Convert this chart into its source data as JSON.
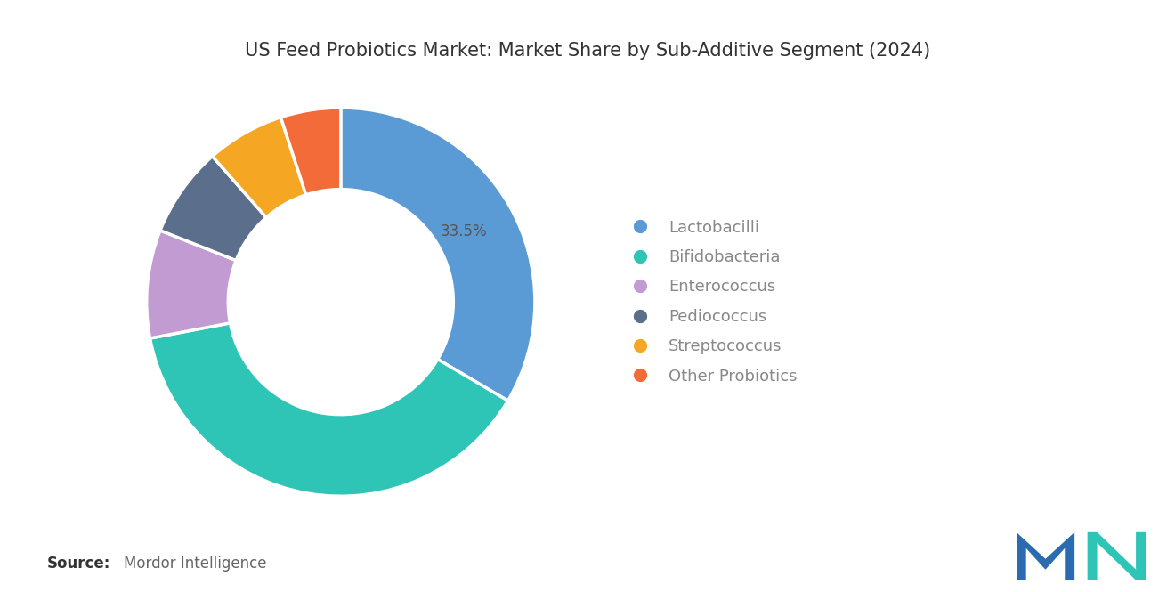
{
  "title": "US Feed Probiotics Market: Market Share by Sub-Additive Segment (2024)",
  "segments": [
    "Lactobacilli",
    "Bifidobacteria",
    "Enterococcus",
    "Pediococcus",
    "Streptococcus",
    "Other Probiotics"
  ],
  "values": [
    33.5,
    38.5,
    9.0,
    7.5,
    6.5,
    5.0
  ],
  "colors": [
    "#5B9BD5",
    "#2EC4B6",
    "#C39BD3",
    "#5B6E8C",
    "#F5A623",
    "#F26B38"
  ],
  "label_value": "33.5%",
  "source_bold": "Source:",
  "source_text": "Mordor Intelligence",
  "background_color": "#FFFFFF",
  "title_fontsize": 15,
  "legend_fontsize": 13,
  "source_fontsize": 12
}
